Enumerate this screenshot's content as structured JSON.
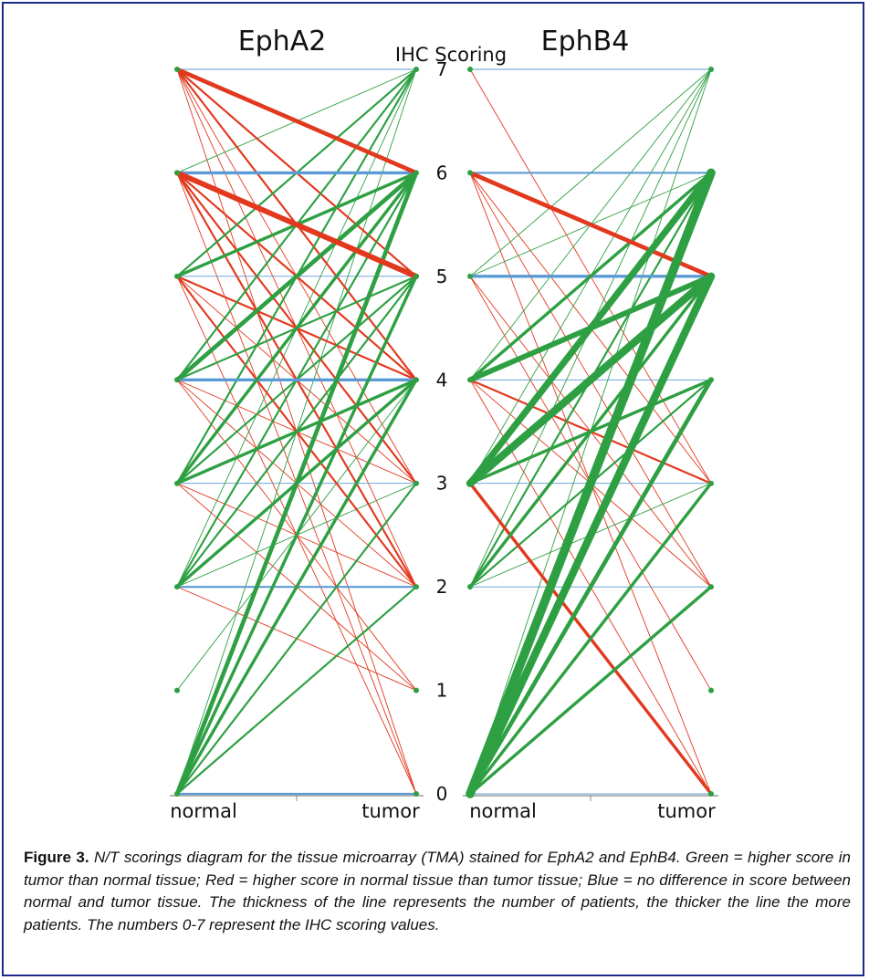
{
  "figure": {
    "caption_label": "Figure 3.",
    "caption_text": "N/T scorings diagram for the tissue microarray (TMA) stained for EphA2 and EphB4. Green = higher score in tumor than normal tissue; Red = higher score in normal tissue than tumor tissue; Blue = no difference in score between normal and tumor tissue. The thickness of the line represents the number of patients, the thicker the line the more patients. The numbers 0-7 represent the IHC scoring values."
  },
  "colors": {
    "higher_in_tumor": "#2ea043",
    "higher_in_normal": "#e2391e",
    "no_difference": "#5b9bd5",
    "axis": "#888888"
  },
  "chart_data": [
    {
      "type": "slope",
      "title": "EphA2",
      "ylabel": "IHC Scoring",
      "categories": [
        "normal",
        "tumor"
      ],
      "y_ticks": [
        "0",
        "1",
        "2",
        "3",
        "4",
        "5",
        "6",
        "7"
      ],
      "ylim": [
        0,
        7
      ],
      "links": [
        {
          "normal": 7,
          "tumor": 7,
          "w": 1
        },
        {
          "normal": 7,
          "tumor": 6,
          "w": 4
        },
        {
          "normal": 7,
          "tumor": 5,
          "w": 2
        },
        {
          "normal": 7,
          "tumor": 4,
          "w": 2
        },
        {
          "normal": 7,
          "tumor": 3,
          "w": 1
        },
        {
          "normal": 7,
          "tumor": 2,
          "w": 1
        },
        {
          "normal": 7,
          "tumor": 0,
          "w": 1
        },
        {
          "normal": 6,
          "tumor": 7,
          "w": 1
        },
        {
          "normal": 6,
          "tumor": 6,
          "w": 3
        },
        {
          "normal": 6,
          "tumor": 5,
          "w": 5
        },
        {
          "normal": 6,
          "tumor": 4,
          "w": 2
        },
        {
          "normal": 6,
          "tumor": 3,
          "w": 2
        },
        {
          "normal": 6,
          "tumor": 2,
          "w": 2
        },
        {
          "normal": 6,
          "tumor": 0,
          "w": 1
        },
        {
          "normal": 5,
          "tumor": 7,
          "w": 2
        },
        {
          "normal": 5,
          "tumor": 6,
          "w": 3
        },
        {
          "normal": 5,
          "tumor": 5,
          "w": 1
        },
        {
          "normal": 5,
          "tumor": 4,
          "w": 2
        },
        {
          "normal": 5,
          "tumor": 3,
          "w": 1
        },
        {
          "normal": 5,
          "tumor": 2,
          "w": 2
        },
        {
          "normal": 5,
          "tumor": 0,
          "w": 1
        },
        {
          "normal": 4,
          "tumor": 7,
          "w": 2
        },
        {
          "normal": 4,
          "tumor": 6,
          "w": 4
        },
        {
          "normal": 4,
          "tumor": 5,
          "w": 2
        },
        {
          "normal": 4,
          "tumor": 4,
          "w": 3
        },
        {
          "normal": 4,
          "tumor": 3,
          "w": 1
        },
        {
          "normal": 4,
          "tumor": 2,
          "w": 1
        },
        {
          "normal": 4,
          "tumor": 1,
          "w": 1
        },
        {
          "normal": 3,
          "tumor": 7,
          "w": 2
        },
        {
          "normal": 3,
          "tumor": 6,
          "w": 3
        },
        {
          "normal": 3,
          "tumor": 5,
          "w": 2
        },
        {
          "normal": 3,
          "tumor": 4,
          "w": 3
        },
        {
          "normal": 3,
          "tumor": 3,
          "w": 1
        },
        {
          "normal": 3,
          "tumor": 2,
          "w": 1
        },
        {
          "normal": 3,
          "tumor": 1,
          "w": 1
        },
        {
          "normal": 2,
          "tumor": 7,
          "w": 1
        },
        {
          "normal": 2,
          "tumor": 6,
          "w": 2
        },
        {
          "normal": 2,
          "tumor": 5,
          "w": 2
        },
        {
          "normal": 2,
          "tumor": 4,
          "w": 3
        },
        {
          "normal": 2,
          "tumor": 3,
          "w": 1
        },
        {
          "normal": 2,
          "tumor": 2,
          "w": 2
        },
        {
          "normal": 2,
          "tumor": 1,
          "w": 1
        },
        {
          "normal": 1,
          "tumor": 4,
          "w": 1
        },
        {
          "normal": 0,
          "tumor": 7,
          "w": 1
        },
        {
          "normal": 0,
          "tumor": 6,
          "w": 4
        },
        {
          "normal": 0,
          "tumor": 5,
          "w": 3
        },
        {
          "normal": 0,
          "tumor": 4,
          "w": 3
        },
        {
          "normal": 0,
          "tumor": 3,
          "w": 2
        },
        {
          "normal": 0,
          "tumor": 2,
          "w": 2
        },
        {
          "normal": 0,
          "tumor": 0,
          "w": 2
        }
      ]
    },
    {
      "type": "slope",
      "title": "EphB4",
      "ylabel": "IHC Scoring",
      "categories": [
        "normal",
        "tumor"
      ],
      "y_ticks": [
        "0",
        "1",
        "2",
        "3",
        "4",
        "5",
        "6",
        "7"
      ],
      "ylim": [
        0,
        7
      ],
      "links": [
        {
          "normal": 7,
          "tumor": 7,
          "w": 1
        },
        {
          "normal": 7,
          "tumor": 3,
          "w": 1
        },
        {
          "normal": 6,
          "tumor": 6,
          "w": 2
        },
        {
          "normal": 6,
          "tumor": 5,
          "w": 4
        },
        {
          "normal": 6,
          "tumor": 3,
          "w": 1
        },
        {
          "normal": 6,
          "tumor": 2,
          "w": 1
        },
        {
          "normal": 6,
          "tumor": 0,
          "w": 1
        },
        {
          "normal": 5,
          "tumor": 7,
          "w": 1
        },
        {
          "normal": 5,
          "tumor": 6,
          "w": 1
        },
        {
          "normal": 5,
          "tumor": 5,
          "w": 3
        },
        {
          "normal": 5,
          "tumor": 2,
          "w": 1
        },
        {
          "normal": 5,
          "tumor": 1,
          "w": 1
        },
        {
          "normal": 4,
          "tumor": 7,
          "w": 1
        },
        {
          "normal": 4,
          "tumor": 6,
          "w": 3
        },
        {
          "normal": 4,
          "tumor": 5,
          "w": 5
        },
        {
          "normal": 4,
          "tumor": 4,
          "w": 1
        },
        {
          "normal": 4,
          "tumor": 3,
          "w": 2
        },
        {
          "normal": 4,
          "tumor": 2,
          "w": 1
        },
        {
          "normal": 4,
          "tumor": 0,
          "w": 1
        },
        {
          "normal": 3,
          "tumor": 7,
          "w": 1
        },
        {
          "normal": 3,
          "tumor": 6,
          "w": 6
        },
        {
          "normal": 3,
          "tumor": 5,
          "w": 7
        },
        {
          "normal": 3,
          "tumor": 4,
          "w": 3
        },
        {
          "normal": 3,
          "tumor": 3,
          "w": 1
        },
        {
          "normal": 3,
          "tumor": 0,
          "w": 3
        },
        {
          "normal": 2,
          "tumor": 7,
          "w": 1
        },
        {
          "normal": 2,
          "tumor": 6,
          "w": 2
        },
        {
          "normal": 2,
          "tumor": 5,
          "w": 3
        },
        {
          "normal": 2,
          "tumor": 4,
          "w": 2
        },
        {
          "normal": 2,
          "tumor": 3,
          "w": 1
        },
        {
          "normal": 2,
          "tumor": 2,
          "w": 1
        },
        {
          "normal": 0,
          "tumor": 7,
          "w": 1
        },
        {
          "normal": 0,
          "tumor": 6,
          "w": 8
        },
        {
          "normal": 0,
          "tumor": 5,
          "w": 7
        },
        {
          "normal": 0,
          "tumor": 4,
          "w": 4
        },
        {
          "normal": 0,
          "tumor": 3,
          "w": 3
        },
        {
          "normal": 0,
          "tumor": 2,
          "w": 3
        },
        {
          "normal": 0,
          "tumor": 0,
          "w": 1
        }
      ]
    }
  ]
}
